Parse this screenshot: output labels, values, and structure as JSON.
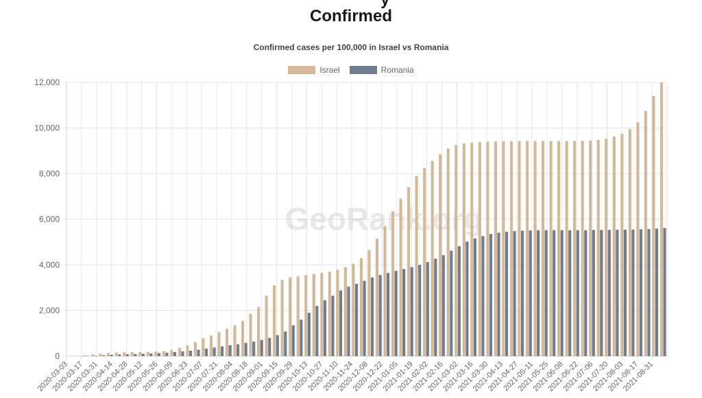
{
  "page": {
    "title": "Confirmed",
    "title_cut": "y"
  },
  "colors": {
    "israel": "#d4b89a",
    "romania": "#6f7d8e",
    "grid": "#e6e6e6",
    "axis_text": "#666666"
  },
  "chart_data": {
    "type": "bar",
    "title": "",
    "subtitle": "Confirmed cases per 100,000 in Israel vs Romania",
    "xlabel": "",
    "ylabel": "",
    "ylim": [
      0,
      12000
    ],
    "yticks": [
      0,
      2000,
      4000,
      6000,
      8000,
      10000,
      12000
    ],
    "ytick_labels": [
      "0",
      "2,000",
      "4,000",
      "6,000",
      "8,000",
      "10,000",
      "12,000"
    ],
    "legend_position": "top-center",
    "grid": true,
    "x_tick_labels": [
      "2020-03-03",
      "2020-03-17",
      "2020-03-31",
      "2020-04-14",
      "2020-04-28",
      "2020-05-12",
      "2020-05-26",
      "2020-06-09",
      "2020-06-23",
      "2020-07-07",
      "2020-07-21",
      "2020-08-04",
      "2020-08-18",
      "2020-09-01",
      "2020-09-15",
      "2020-09-29",
      "2020-10-13",
      "2020-10-27",
      "2020-11-10",
      "2020-11-24",
      "2020-12-08",
      "2020-12-22",
      "2021-01-05",
      "2021-01-19",
      "2021-02-02",
      "2021-02-16",
      "2021-03-02",
      "2021-03-16",
      "2021-03-30",
      "2021-04-13",
      "2021-04-27",
      "2021-05-11",
      "2021-05-25",
      "2021-06-08",
      "2021-06-22",
      "2021-07-06",
      "2021-07-20",
      "2021-08-03",
      "2021-08-17",
      "2021-08-31"
    ],
    "series": [
      {
        "name": "Israel",
        "values": [
          0,
          2,
          40,
          80,
          110,
          140,
          160,
          170,
          175,
          180,
          190,
          200,
          220,
          280,
          360,
          470,
          620,
          780,
          900,
          1050,
          1200,
          1350,
          1550,
          1850,
          2150,
          2650,
          3100,
          3350,
          3450,
          3500,
          3550,
          3600,
          3650,
          3700,
          3780,
          3900,
          4050,
          4300,
          4650,
          5150,
          5700,
          6350,
          6900,
          7400,
          7900,
          8250,
          8550,
          8850,
          9100,
          9250,
          9320,
          9360,
          9380,
          9400,
          9410,
          9420,
          9420,
          9430,
          9430,
          9430,
          9430,
          9430,
          9430,
          9430,
          9430,
          9440,
          9450,
          9480,
          9530,
          9620,
          9750,
          9950,
          10250,
          10750,
          11400,
          12000
        ]
      },
      {
        "name": "Romania",
        "values": [
          0,
          0,
          10,
          20,
          40,
          60,
          75,
          85,
          95,
          105,
          120,
          135,
          150,
          180,
          210,
          240,
          280,
          330,
          380,
          430,
          480,
          520,
          580,
          640,
          710,
          800,
          920,
          1080,
          1350,
          1600,
          1900,
          2200,
          2450,
          2650,
          2880,
          3050,
          3170,
          3300,
          3450,
          3560,
          3650,
          3740,
          3820,
          3900,
          4000,
          4120,
          4270,
          4430,
          4620,
          4820,
          5020,
          5160,
          5260,
          5350,
          5410,
          5450,
          5480,
          5500,
          5510,
          5520,
          5520,
          5520,
          5520,
          5520,
          5520,
          5520,
          5530,
          5530,
          5530,
          5540,
          5540,
          5550,
          5560,
          5570,
          5590,
          5620
        ]
      }
    ]
  }
}
